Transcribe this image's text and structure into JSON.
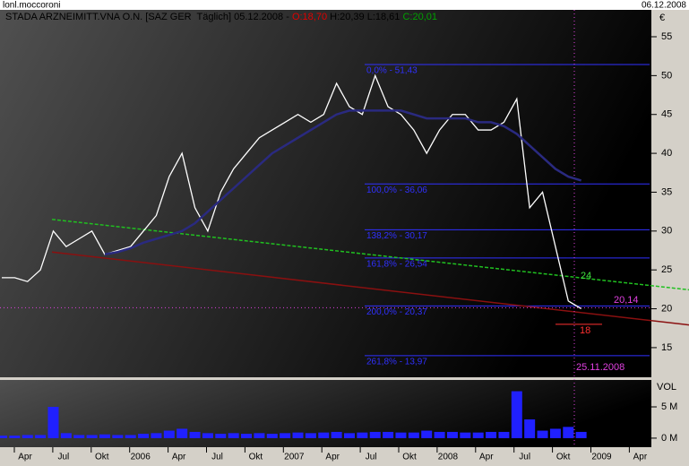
{
  "header": {
    "user": "lonl.moccoroni",
    "date": "06.12.2008",
    "title_parts": [
      {
        "text": "STADA ARZNEIMITT.VNA O.N. [SAZ GER  Täglich] 05.12.2008 - ",
        "color": "#000000"
      },
      {
        "text": "O:18,70",
        "color": "#e00000"
      },
      {
        "text": " H:20,39 L:18,61 ",
        "color": "#000000"
      },
      {
        "text": "C:20,01",
        "color": "#00a000"
      }
    ]
  },
  "chart_data": [
    {
      "type": "line",
      "unit_label": "€",
      "ylim": [
        11.3,
        56.5
      ],
      "yticks": [
        15,
        20,
        25,
        30,
        35,
        40,
        45,
        50,
        55
      ],
      "x_labels": [
        "Apr",
        "Jul",
        "Okt",
        "2006",
        "Apr",
        "Jul",
        "Okt",
        "2007",
        "Apr",
        "Jul",
        "Okt",
        "2008",
        "Apr",
        "Jul",
        "Okt",
        "2009",
        "Apr"
      ],
      "series": [
        {
          "name": "Close",
          "color": "#ffffff",
          "values": [
            24,
            24,
            23.5,
            25,
            30,
            28,
            29,
            30,
            27,
            27.5,
            28,
            30,
            32,
            37,
            40,
            33,
            30,
            35,
            38,
            40,
            42,
            43,
            44,
            45,
            44,
            45,
            49,
            46,
            45,
            50,
            46,
            45,
            43,
            40,
            43,
            45,
            45,
            43,
            43,
            44,
            47,
            33,
            35,
            28,
            21,
            20.01
          ]
        },
        {
          "name": "MA",
          "color": "#2a2a80",
          "values": [
            null,
            null,
            null,
            null,
            null,
            null,
            null,
            null,
            27,
            27.3,
            27.8,
            28.5,
            29,
            29.5,
            30,
            31,
            32.5,
            34,
            35.5,
            37,
            38.5,
            40,
            41,
            42,
            43,
            44,
            45,
            45.5,
            45.5,
            45.5,
            45.5,
            45.5,
            45,
            44.5,
            44.5,
            44.5,
            44.5,
            44,
            44,
            43.5,
            42.5,
            41,
            39.5,
            38,
            37,
            36.5
          ]
        }
      ],
      "fib_levels": [
        {
          "value": 51.43,
          "label": "0,0% - 51,43"
        },
        {
          "value": 36.06,
          "label": "100,0% - 36,06"
        },
        {
          "value": 30.17,
          "label": "138,2% - 30,17"
        },
        {
          "value": 26.54,
          "label": "161,8% - 26,54"
        },
        {
          "value": 20.37,
          "label": "200,0% - 20,37"
        },
        {
          "value": 13.97,
          "label": "261,8% - 13,97"
        }
      ],
      "fib_color": "#3030ff",
      "trendlines": [
        {
          "color": "#20c020",
          "from": 31.5,
          "to": 23
        },
        {
          "color": "#8a1010",
          "from": 27.3,
          "to": 18.5
        }
      ],
      "annotations": [
        {
          "text": "24",
          "value": 24,
          "color": "#40e040"
        },
        {
          "text": "20,14",
          "value": 20.14,
          "color": "#e040e0"
        },
        {
          "text": "18",
          "value": 18,
          "color": "#ff3030"
        },
        {
          "text": "25.11.2008",
          "color": "#e040e0"
        }
      ]
    },
    {
      "type": "bar",
      "unit_label": "VOL",
      "color": "#2020ff",
      "ylim": [
        -1.3,
        9.3
      ],
      "yticks": [
        {
          "value": 0,
          "label": "0 M"
        },
        {
          "value": 5,
          "label": "5 M"
        }
      ],
      "values": [
        0.4,
        0.4,
        0.5,
        0.5,
        5,
        0.8,
        0.5,
        0.5,
        0.6,
        0.5,
        0.5,
        0.7,
        0.8,
        1.2,
        1.5,
        1,
        0.8,
        0.7,
        0.8,
        0.7,
        0.8,
        0.7,
        0.8,
        0.9,
        0.8,
        0.9,
        1,
        0.8,
        0.9,
        1,
        1,
        0.9,
        0.9,
        1.2,
        1,
        1,
        0.9,
        0.9,
        1,
        1,
        7.5,
        3,
        1.2,
        1.5,
        1.8,
        1
      ]
    }
  ]
}
